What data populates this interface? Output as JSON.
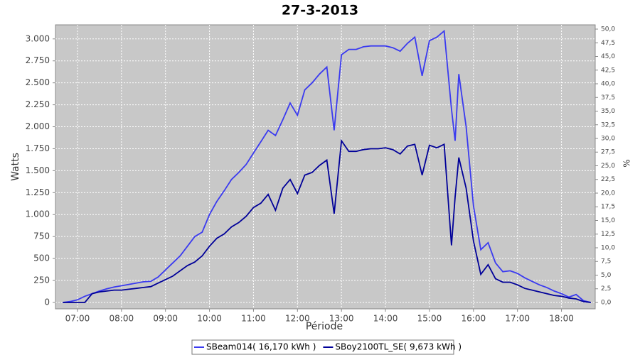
{
  "chart_data": {
    "type": "line",
    "title": "27-3-2013",
    "xlabel": "Période",
    "ylabel": "Watts",
    "y2label": "%",
    "x": [
      "06:40",
      "06:50",
      "07:00",
      "07:10",
      "07:20",
      "07:30",
      "07:40",
      "07:50",
      "08:00",
      "08:10",
      "08:20",
      "08:30",
      "08:40",
      "08:50",
      "09:00",
      "09:10",
      "09:20",
      "09:30",
      "09:40",
      "09:50",
      "10:00",
      "10:10",
      "10:20",
      "10:30",
      "10:40",
      "10:50",
      "11:00",
      "11:10",
      "11:20",
      "11:30",
      "11:40",
      "11:50",
      "12:00",
      "12:10",
      "12:20",
      "12:30",
      "12:40",
      "12:50",
      "13:00",
      "13:10",
      "13:20",
      "13:30",
      "13:40",
      "13:50",
      "14:00",
      "14:10",
      "14:20",
      "14:30",
      "14:40",
      "14:50",
      "15:00",
      "15:10",
      "15:20",
      "15:30",
      "15:35",
      "15:40",
      "15:50",
      "16:00",
      "16:10",
      "16:20",
      "16:30",
      "16:40",
      "16:50",
      "17:00",
      "17:10",
      "17:20",
      "17:30",
      "17:40",
      "17:50",
      "18:00",
      "18:10",
      "18:20",
      "18:30",
      "18:40"
    ],
    "series": [
      {
        "name": "SBeam014( 16,170 kWh )",
        "color": "#3a3af0",
        "values": [
          0,
          10,
          30,
          70,
          100,
          130,
          155,
          175,
          190,
          205,
          220,
          235,
          240,
          290,
          370,
          450,
          530,
          640,
          750,
          800,
          1000,
          1150,
          1270,
          1400,
          1480,
          1570,
          1700,
          1830,
          1960,
          1900,
          2080,
          2270,
          2130,
          2420,
          2500,
          2600,
          2680,
          1960,
          2820,
          2880,
          2880,
          2910,
          2920,
          2920,
          2920,
          2900,
          2860,
          2950,
          3020,
          2580,
          2980,
          3020,
          3090,
          2200,
          1840,
          2600,
          2000,
          1100,
          600,
          680,
          450,
          350,
          360,
          330,
          280,
          240,
          200,
          170,
          130,
          100,
          60,
          90,
          20,
          0
        ]
      },
      {
        "name": "SBoy2100TL_SE( 9,673 kWh )",
        "color": "#000099",
        "values": [
          0,
          0,
          0,
          0,
          100,
          120,
          130,
          140,
          140,
          150,
          160,
          170,
          180,
          220,
          260,
          300,
          360,
          420,
          460,
          530,
          640,
          730,
          780,
          860,
          910,
          980,
          1080,
          1130,
          1230,
          1050,
          1300,
          1400,
          1240,
          1450,
          1480,
          1560,
          1620,
          1010,
          1840,
          1720,
          1720,
          1740,
          1750,
          1750,
          1760,
          1740,
          1690,
          1780,
          1800,
          1450,
          1790,
          1760,
          1800,
          650,
          1200,
          1650,
          1300,
          700,
          320,
          430,
          270,
          230,
          230,
          200,
          160,
          140,
          120,
          100,
          80,
          70,
          50,
          40,
          10,
          0
        ]
      }
    ],
    "xlim": [
      "06:30",
      "18:46"
    ],
    "xticks": [
      "07:00",
      "08:00",
      "09:00",
      "10:00",
      "11:00",
      "12:00",
      "13:00",
      "14:00",
      "15:00",
      "16:00",
      "17:00",
      "18:00"
    ],
    "ylim": [
      -73,
      3160
    ],
    "yticks": [
      0,
      250,
      500,
      750,
      {
        "value": 1000,
        "label": "1.000"
      },
      {
        "value": 1250,
        "label": "1.250"
      },
      {
        "value": 1500,
        "label": "1.500"
      },
      {
        "value": 1750,
        "label": "1.750"
      },
      {
        "value": 2000,
        "label": "2.000"
      },
      {
        "value": 2250,
        "label": "2.250"
      },
      {
        "value": 2500,
        "label": "2.500"
      },
      {
        "value": 2750,
        "label": "2.750"
      },
      {
        "value": 3000,
        "label": "3.000"
      }
    ],
    "y2lim": [
      -1.17,
      50.78
    ],
    "y2ticks": [
      {
        "value": 0,
        "label": "0,0"
      },
      {
        "value": 2.5,
        "label": "2,5"
      },
      {
        "value": 5,
        "label": "5,0"
      },
      {
        "value": 7.5,
        "label": "7,5"
      },
      {
        "value": 10,
        "label": "10,0"
      },
      {
        "value": 12.5,
        "label": "12,5"
      },
      {
        "value": 15,
        "label": "15,0"
      },
      {
        "value": 17.5,
        "label": "17,5"
      },
      {
        "value": 20,
        "label": "20,0"
      },
      {
        "value": 22.5,
        "label": "22,5"
      },
      {
        "value": 25,
        "label": "25,0"
      },
      {
        "value": 27.5,
        "label": "27,5"
      },
      {
        "value": 30,
        "label": "30,0"
      },
      {
        "value": 32.5,
        "label": "32,5"
      },
      {
        "value": 35,
        "label": "35,0"
      },
      {
        "value": 37.5,
        "label": "37,5"
      },
      {
        "value": 40,
        "label": "40,0"
      },
      {
        "value": 42.5,
        "label": "42,5"
      },
      {
        "value": 45,
        "label": "45,0"
      },
      {
        "value": 47.5,
        "label": "47,5"
      },
      {
        "value": 50,
        "label": "50,0"
      }
    ],
    "grid": true
  }
}
